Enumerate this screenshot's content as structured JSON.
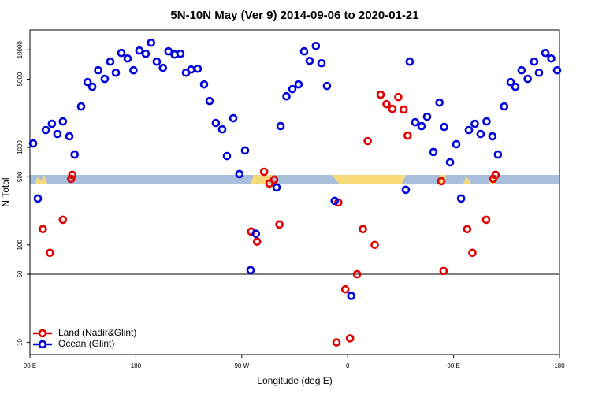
{
  "chart_data": {
    "type": "scatter",
    "title": "5N-10N May (Ver 9)   2014-09-06 to 2020-01-21",
    "x_label": "Longitude (deg E)",
    "y_label": "N Total",
    "log_y": true,
    "xlim": [
      90,
      540
    ],
    "ylim": [
      7.5,
      16000
    ],
    "xticks": [
      {
        "value": 90,
        "label": "90 E"
      },
      {
        "value": 180,
        "label": "180"
      },
      {
        "value": 270,
        "label": "90 W"
      },
      {
        "value": 360,
        "label": "0"
      },
      {
        "value": 450,
        "label": "90 E"
      },
      {
        "value": 540,
        "label": "180"
      }
    ],
    "yticks": [
      10,
      50,
      100,
      500,
      1000,
      5000,
      10000
    ],
    "hline": 50,
    "legend": "bottom-left",
    "series": [
      {
        "name": "Land (Nadir&Glint)",
        "color": "#e00000",
        "x": [
          101,
          107,
          118,
          125,
          126,
          278,
          283,
          289,
          293.5,
          297.6,
          302,
          352,
          350.5,
          358,
          362,
          368,
          373,
          377,
          383,
          388,
          393,
          398,
          403,
          407.6,
          411,
          439.5,
          441.5,
          461.6,
          466,
          477.7,
          483.7,
          485.7
        ],
        "values": [
          145,
          83,
          181,
          476,
          522,
          137,
          108,
          562,
          426,
          467,
          162,
          272,
          10,
          35,
          11,
          50,
          145,
          1161,
          100,
          3470,
          2780,
          2480,
          3280,
          2440,
          1320,
          450,
          54,
          145,
          83,
          181,
          476,
          522
        ]
      },
      {
        "name": "Ocean (Glint)",
        "color": "#0000dd",
        "x": [
          92.7,
          96.7,
          103.5,
          108.7,
          113.4,
          118,
          123.5,
          128,
          133.5,
          139,
          143,
          148,
          153.6,
          158.3,
          163,
          167.7,
          173,
          178,
          183,
          188.4,
          193,
          197.8,
          203,
          207.8,
          213,
          217.9,
          222.6,
          227,
          232.6,
          238,
          242.7,
          248,
          253.4,
          257.4,
          262.8,
          268,
          272.8,
          277.5,
          282,
          299.6,
          303,
          308,
          313,
          318.3,
          323,
          327.7,
          333,
          337.8,
          342.4,
          349,
          363,
          409.4,
          412.7,
          417.4,
          422.8,
          427.5,
          432.8,
          438,
          442,
          447,
          452.3,
          456.4,
          463,
          468,
          473,
          478,
          483,
          487.7,
          493,
          498.5,
          502.5,
          507.8,
          513,
          518.5,
          522.6,
          528,
          533,
          538
        ],
        "values": [
          1097,
          299,
          1504,
          1746,
          1371,
          1845,
          1297,
          845,
          2626,
          4670,
          4180,
          6170,
          5040,
          7570,
          5830,
          9290,
          8150,
          6170,
          9820,
          9120,
          11830,
          7570,
          6530,
          9640,
          8950,
          9120,
          5830,
          6280,
          6400,
          4420,
          2990,
          1780,
          1530,
          815,
          1990,
          532,
          929,
          55,
          130,
          388,
          1650,
          3340,
          3950,
          4420,
          9640,
          7710,
          10960,
          7290,
          4260,
          283,
          30,
          367,
          7570,
          1810,
          1650,
          2060,
          895,
          2880,
          1620,
          703,
          1077,
          299,
          1504,
          1746,
          1371,
          1845,
          1297,
          845,
          2626,
          4670,
          4180,
          6170,
          5040,
          7570,
          5830,
          9290,
          8150,
          6170
        ]
      }
    ]
  }
}
